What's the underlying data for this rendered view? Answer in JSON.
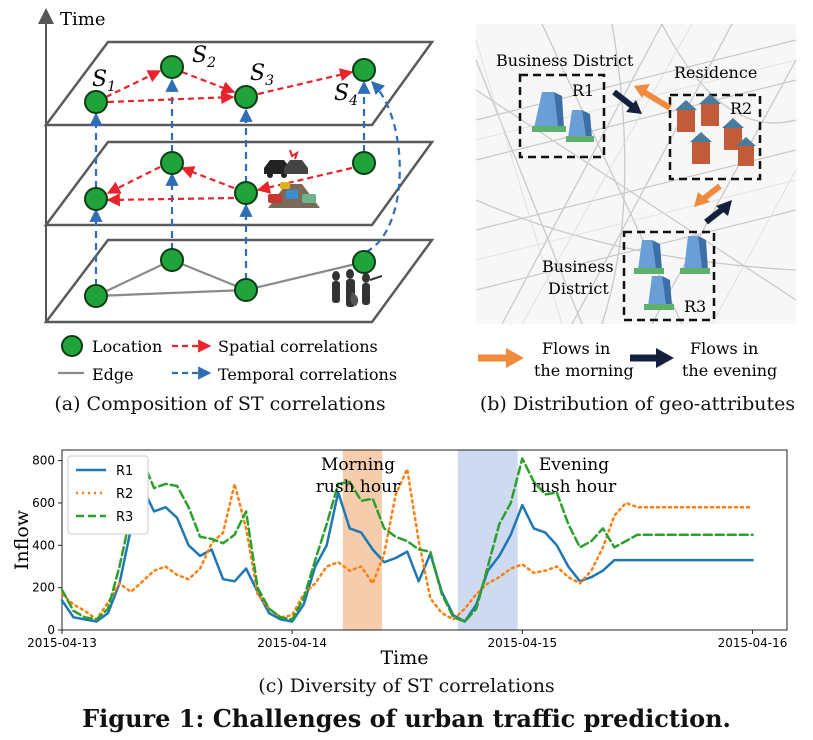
{
  "panel_a": {
    "time_label": "Time",
    "node_labels": [
      "S1",
      "S2",
      "S3",
      "S4"
    ],
    "legend": {
      "location": "Location",
      "edge": "Edge",
      "spatial": "Spatial correlations",
      "temporal": "Temporal correlations"
    },
    "caption": "(a) Composition of ST correlations",
    "colors": {
      "node": "#1fa33a",
      "spatial": "#e8232b",
      "temporal": "#2f6db5",
      "edge": "#8a8a8a",
      "plane": "#5a5a5a"
    }
  },
  "panel_b": {
    "labels": {
      "business_top": "Business District",
      "residence": "Residence",
      "business_bottom_line1": "Business",
      "business_bottom_line2": "District",
      "r1": "R1",
      "r2": "R2",
      "r3": "R3"
    },
    "legend": {
      "morning": [
        "Flows in",
        "the morning"
      ],
      "evening": [
        "Flows in",
        "the evening"
      ]
    },
    "caption": "(b) Distribution of geo-attributes",
    "colors": {
      "morning": "#f08a3c",
      "evening": "#14213d"
    }
  },
  "panel_c": {
    "caption": "(c) Diversity of ST correlations",
    "annotations": {
      "morning": [
        "Morning",
        "rush hour"
      ],
      "evening": [
        "Evening",
        "rush hour"
      ]
    },
    "colors": {
      "morning_band": "#f4c7a3",
      "evening_band": "#c8d6ee",
      "R1": "#1f77b4",
      "R2": "#ff7f0e",
      "R3": "#2ca02c"
    }
  },
  "chart_data": {
    "type": "line",
    "xlabel": "Time",
    "ylabel": "Inflow",
    "ylim": [
      0,
      850
    ],
    "y_ticks": [
      0,
      200,
      400,
      600,
      800
    ],
    "x_ticks": [
      "2015-04-13",
      "2015-04-14",
      "2015-04-15",
      "2015-04-16"
    ],
    "x_range_days": [
      0,
      3.15
    ],
    "legend_position": "top-left",
    "x": [
      0.0,
      0.05,
      0.1,
      0.15,
      0.2,
      0.25,
      0.3,
      0.35,
      0.4,
      0.45,
      0.5,
      0.55,
      0.6,
      0.65,
      0.7,
      0.75,
      0.8,
      0.85,
      0.9,
      0.95,
      1.0,
      1.05,
      1.1,
      1.15,
      1.2,
      1.25,
      1.3,
      1.35,
      1.4,
      1.45,
      1.5,
      1.55,
      1.6,
      1.65,
      1.7,
      1.75,
      1.8,
      1.85,
      1.9,
      1.95,
      2.0,
      2.05,
      2.1,
      2.15,
      2.2,
      2.25,
      2.3,
      2.35,
      2.4,
      2.45,
      2.5,
      2.55,
      2.6,
      2.65,
      2.7,
      2.75,
      2.8,
      2.85,
      2.9,
      2.95,
      3.0
    ],
    "series": [
      {
        "name": "R1",
        "style": "solid",
        "values": [
          140,
          60,
          50,
          40,
          80,
          220,
          480,
          670,
          560,
          580,
          530,
          400,
          350,
          380,
          240,
          230,
          290,
          180,
          80,
          50,
          40,
          120,
          300,
          400,
          650,
          480,
          460,
          380,
          320,
          340,
          370,
          230,
          360,
          180,
          70,
          40,
          120,
          280,
          350,
          450,
          590,
          480,
          460,
          400,
          300,
          230,
          250,
          280,
          330,
          330,
          330,
          330,
          330,
          330,
          330,
          330,
          330,
          330,
          330,
          330,
          330
        ]
      },
      {
        "name": "R2",
        "style": "dotted",
        "values": [
          170,
          120,
          90,
          50,
          130,
          220,
          180,
          230,
          280,
          300,
          260,
          240,
          290,
          410,
          460,
          690,
          480,
          170,
          100,
          60,
          70,
          170,
          220,
          300,
          320,
          280,
          300,
          220,
          360,
          640,
          760,
          420,
          150,
          80,
          50,
          100,
          170,
          220,
          250,
          290,
          310,
          270,
          280,
          300,
          250,
          220,
          280,
          390,
          540,
          600,
          580,
          580,
          580,
          580,
          580,
          580,
          580,
          580,
          580,
          580,
          580
        ]
      },
      {
        "name": "R3",
        "style": "dashed",
        "values": [
          190,
          90,
          60,
          50,
          100,
          300,
          550,
          800,
          670,
          690,
          680,
          580,
          440,
          430,
          410,
          450,
          560,
          200,
          100,
          60,
          50,
          150,
          330,
          500,
          690,
          700,
          610,
          620,
          480,
          440,
          420,
          380,
          370,
          170,
          60,
          40,
          100,
          300,
          500,
          600,
          810,
          700,
          640,
          650,
          500,
          390,
          420,
          480,
          390,
          420,
          450,
          450,
          450,
          450,
          450,
          450,
          450,
          450,
          450,
          450,
          450
        ]
      }
    ],
    "shaded_ranges": [
      {
        "name": "Morning rush hour",
        "x0": 1.22,
        "x1": 1.39
      },
      {
        "name": "Evening rush hour",
        "x0": 1.72,
        "x1": 1.98
      }
    ]
  },
  "figure_title": "Figure 1: Challenges of urban traffic prediction."
}
